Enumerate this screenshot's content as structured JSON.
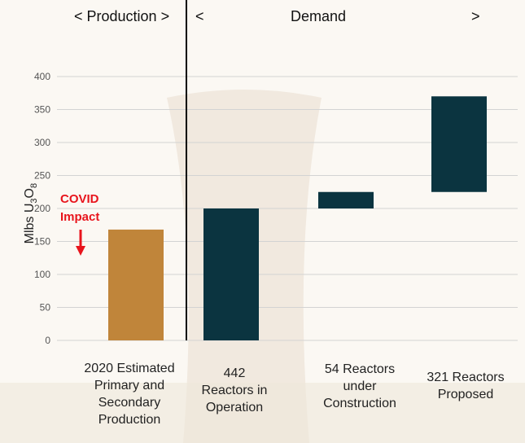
{
  "header": {
    "production": "< Production >",
    "demand_left": "<",
    "demand": "Demand",
    "demand_right": ">"
  },
  "chart_data": {
    "type": "bar",
    "subtype": "waterfall",
    "ylabel": "Mlbs U3O8",
    "ylabel_parts": {
      "base1": "Mlbs U",
      "sub1": "3",
      "base2": "O",
      "sub2": "8"
    },
    "ylim": [
      0,
      400
    ],
    "yticks": [
      0,
      50,
      100,
      150,
      200,
      250,
      300,
      350,
      400
    ],
    "grid": true,
    "categories": [
      "2020 Estimated Primary and Secondary Production",
      "442 Reactors in Operation",
      "54 Reactors under Construction",
      "321 Reactors Proposed"
    ],
    "category_lines": [
      "2020 Estimated\nPrimary and\nSecondary\nProduction",
      "442\nReactors in\nOperation",
      "54 Reactors\nunder\nConstruction",
      "321 Reactors\nProposed"
    ],
    "bars": [
      {
        "start": 0,
        "end": 168,
        "color": "#c0853a",
        "group": "Production"
      },
      {
        "start": 0,
        "end": 200,
        "color": "#0b3440",
        "group": "Demand"
      },
      {
        "start": 200,
        "end": 225,
        "color": "#0b3440",
        "group": "Demand"
      },
      {
        "start": 225,
        "end": 370,
        "color": "#0b3440",
        "group": "Demand"
      }
    ],
    "annotation": {
      "line1": "COVID",
      "line2": "Impact",
      "color": "#e8141c"
    }
  }
}
